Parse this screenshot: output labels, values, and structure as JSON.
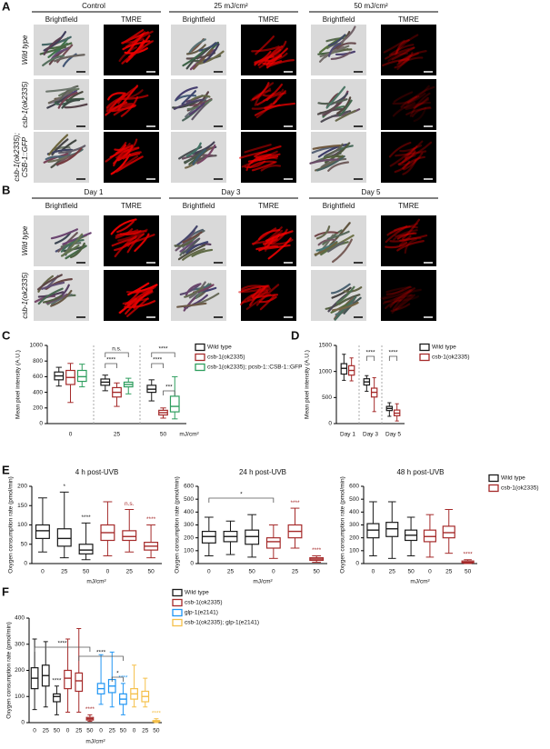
{
  "panel_a": {
    "label": "A",
    "columns": [
      "Control",
      "25 mJ/cm²",
      "50 mJ/cm²"
    ],
    "subcolumns": [
      "Brightfield",
      "TMRE"
    ],
    "rows": [
      [
        "Wild type"
      ],
      [
        "csb-1(ok2335)"
      ],
      [
        "csb-1(ok2335);",
        "CSB-1::GFP"
      ]
    ]
  },
  "panel_b": {
    "label": "B",
    "columns": [
      "Day 1",
      "Day 3",
      "Day 5"
    ],
    "subcolumns": [
      "Brightfield",
      "TMRE"
    ],
    "rows": [
      [
        "Wild type"
      ],
      [
        "csb-1(ok2335)"
      ]
    ]
  },
  "chart_data": [
    {
      "type": "box",
      "label": "C",
      "y_label": "Mean pixel intensity (A.U.)",
      "x_label": "mJ/cm²",
      "categories": [
        "0",
        "25",
        "50"
      ],
      "ylim": [
        0,
        1000
      ],
      "yticks": [
        0,
        200,
        400,
        600,
        800,
        1000
      ],
      "brackets": [
        "n.s.",
        "****",
        "****",
        "****",
        "***"
      ],
      "series": [
        {
          "name": "Wild type",
          "color": "#1a1a1a",
          "values": [
            {
              "min": 480,
              "q1": 560,
              "median": 610,
              "q3": 660,
              "max": 720
            },
            {
              "min": 420,
              "q1": 490,
              "median": 530,
              "q3": 570,
              "max": 620
            },
            {
              "min": 290,
              "q1": 400,
              "median": 440,
              "q3": 490,
              "max": 560
            }
          ]
        },
        {
          "name": "csb-1(ok2335)",
          "color": "#a52a2a",
          "values": [
            {
              "min": 270,
              "q1": 500,
              "median": 590,
              "q3": 680,
              "max": 770
            },
            {
              "min": 220,
              "q1": 340,
              "median": 400,
              "q3": 460,
              "max": 520
            },
            {
              "min": 70,
              "q1": 110,
              "median": 140,
              "q3": 170,
              "max": 200
            }
          ]
        },
        {
          "name": "csb-1(ok2335); pcsb-1::CSB-1::GFP",
          "color": "#2e9e5e",
          "values": [
            {
              "min": 470,
              "q1": 540,
              "median": 600,
              "q3": 680,
              "max": 760
            },
            {
              "min": 380,
              "q1": 470,
              "median": 500,
              "q3": 530,
              "max": 580
            },
            {
              "min": 60,
              "q1": 150,
              "median": 220,
              "q3": 350,
              "max": 600
            }
          ]
        }
      ]
    },
    {
      "type": "box",
      "label": "D",
      "y_label": "Mean pixel intensity (A.U.)",
      "categories": [
        "Day 1",
        "Day 3",
        "Day 5"
      ],
      "ylim": [
        0,
        1500
      ],
      "yticks": [
        0,
        500,
        1000,
        1500
      ],
      "brackets": [
        "****",
        "****"
      ],
      "series": [
        {
          "name": "Wild type",
          "color": "#1a1a1a",
          "values": [
            {
              "min": 830,
              "q1": 950,
              "median": 1060,
              "q3": 1150,
              "max": 1330
            },
            {
              "min": 620,
              "q1": 740,
              "median": 800,
              "q3": 860,
              "max": 920
            },
            {
              "min": 140,
              "q1": 250,
              "median": 290,
              "q3": 330,
              "max": 400
            }
          ]
        },
        {
          "name": "csb-1(ok2335)",
          "color": "#a52a2a",
          "values": [
            {
              "min": 820,
              "q1": 930,
              "median": 1020,
              "q3": 1110,
              "max": 1260
            },
            {
              "min": 230,
              "q1": 510,
              "median": 600,
              "q3": 680,
              "max": 880
            },
            {
              "min": 50,
              "q1": 150,
              "median": 200,
              "q3": 260,
              "max": 380
            }
          ]
        }
      ]
    },
    {
      "type": "box",
      "label": "E",
      "title": "4 h post-UVB",
      "y_label": "Oxygen consumption rate (pmol/min)",
      "x_label": "mJ/cm²",
      "categories": [
        "0",
        "25",
        "50"
      ],
      "ylim": [
        0,
        200
      ],
      "yticks": [
        0,
        50,
        100,
        150,
        200
      ],
      "series": [
        {
          "name": "Wild type",
          "color": "#1a1a1a",
          "sig": [
            null,
            "*",
            "****"
          ],
          "values": [
            {
              "min": 30,
              "q1": 65,
              "median": 85,
              "q3": 100,
              "max": 170
            },
            {
              "min": 15,
              "q1": 45,
              "median": 65,
              "q3": 90,
              "max": 185
            },
            {
              "min": 10,
              "q1": 25,
              "median": 35,
              "q3": 50,
              "max": 105
            }
          ]
        },
        {
          "name": "csb-1(ok2335)",
          "color": "#a52a2a",
          "sig": [
            null,
            "n.s.",
            "****"
          ],
          "values": [
            {
              "min": 20,
              "q1": 60,
              "median": 80,
              "q3": 100,
              "max": 160
            },
            {
              "min": 30,
              "q1": 60,
              "median": 70,
              "q3": 85,
              "max": 140
            },
            {
              "min": 15,
              "q1": 35,
              "median": 45,
              "q3": 55,
              "max": 100
            }
          ]
        }
      ]
    },
    {
      "type": "box",
      "title": "24 h post-UVB",
      "y_label": "Oxygen consumption rate (pmol/min)",
      "x_label": "mJ/cm²",
      "categories": [
        "0",
        "25",
        "50"
      ],
      "ylim": [
        0,
        600
      ],
      "yticks": [
        0,
        100,
        200,
        300,
        400,
        500,
        600
      ],
      "brackets": [
        "*"
      ],
      "series": [
        {
          "name": "Wild type",
          "color": "#1a1a1a",
          "values": [
            {
              "min": 60,
              "q1": 160,
              "median": 210,
              "q3": 250,
              "max": 360
            },
            {
              "min": 70,
              "q1": 170,
              "median": 210,
              "q3": 250,
              "max": 330
            },
            {
              "min": 50,
              "q1": 150,
              "median": 210,
              "q3": 260,
              "max": 380
            }
          ]
        },
        {
          "name": "csb-1(ok2335)",
          "color": "#a52a2a",
          "sig": [
            null,
            "****",
            "****"
          ],
          "values": [
            {
              "min": 40,
              "q1": 120,
              "median": 170,
              "q3": 200,
              "max": 300
            },
            {
              "min": 120,
              "q1": 200,
              "median": 250,
              "q3": 300,
              "max": 430
            },
            {
              "min": 10,
              "q1": 25,
              "median": 35,
              "q3": 45,
              "max": 60
            }
          ]
        }
      ]
    },
    {
      "type": "box",
      "title": "48 h post-UVB",
      "y_label": "Oxygen consumption rate (pmol/min)",
      "x_label": "mJ/cm²",
      "categories": [
        "0",
        "25",
        "50"
      ],
      "ylim": [
        0,
        600
      ],
      "yticks": [
        0,
        100,
        200,
        300,
        400,
        500,
        600
      ],
      "series": [
        {
          "name": "Wild type",
          "color": "#1a1a1a",
          "values": [
            {
              "min": 60,
              "q1": 200,
              "median": 260,
              "q3": 310,
              "max": 480
            },
            {
              "min": 40,
              "q1": 210,
              "median": 270,
              "q3": 320,
              "max": 480
            },
            {
              "min": 60,
              "q1": 180,
              "median": 220,
              "q3": 260,
              "max": 360
            }
          ]
        },
        {
          "name": "csb-1(ok2335)",
          "color": "#a52a2a",
          "sig": [
            null,
            null,
            "****"
          ],
          "values": [
            {
              "min": 50,
              "q1": 170,
              "median": 210,
              "q3": 260,
              "max": 380
            },
            {
              "min": 80,
              "q1": 200,
              "median": 240,
              "q3": 290,
              "max": 420
            },
            {
              "min": 0,
              "q1": 5,
              "median": 10,
              "q3": 20,
              "max": 30
            }
          ]
        }
      ]
    },
    {
      "type": "box",
      "label": "F",
      "y_label": "Oxygen consumption rate (pmol/min)",
      "x_label": "mJ/cm²",
      "categories": [
        "0",
        "25",
        "50"
      ],
      "ylim": [
        0,
        400
      ],
      "yticks": [
        0,
        100,
        200,
        300,
        400
      ],
      "brackets": [
        "****",
        "****",
        "*"
      ],
      "series": [
        {
          "name": "Wild type",
          "color": "#1a1a1a",
          "sig": [
            null,
            null,
            "****"
          ],
          "values": [
            {
              "min": 50,
              "q1": 130,
              "median": 170,
              "q3": 210,
              "max": 320
            },
            {
              "min": 60,
              "q1": 140,
              "median": 180,
              "q3": 220,
              "max": 310
            },
            {
              "min": 30,
              "q1": 80,
              "median": 100,
              "q3": 110,
              "max": 140
            }
          ]
        },
        {
          "name": "csb-1(ok2335)",
          "color": "#a52a2a",
          "sig": [
            null,
            null,
            "****"
          ],
          "values": [
            {
              "min": 40,
              "q1": 130,
              "median": 170,
              "q3": 200,
              "max": 320
            },
            {
              "min": 40,
              "q1": 120,
              "median": 160,
              "q3": 190,
              "max": 360
            },
            {
              "min": 5,
              "q1": 10,
              "median": 15,
              "q3": 20,
              "max": 30
            }
          ]
        },
        {
          "name": "glp-1(e2141)",
          "color": "#2196f3",
          "sig": [
            null,
            null,
            "****"
          ],
          "values": [
            {
              "min": 70,
              "q1": 110,
              "median": 130,
              "q3": 150,
              "max": 260
            },
            {
              "min": 60,
              "q1": 115,
              "median": 140,
              "q3": 165,
              "max": 270
            },
            {
              "min": 30,
              "q1": 70,
              "median": 90,
              "q3": 110,
              "max": 150
            }
          ]
        },
        {
          "name": "csb-1(ok2335); glp-1(e2141)",
          "color": "#f5c04a",
          "sig": [
            null,
            null,
            "****"
          ],
          "values": [
            {
              "min": 60,
              "q1": 90,
              "median": 110,
              "q3": 130,
              "max": 220
            },
            {
              "min": 60,
              "q1": 80,
              "median": 100,
              "q3": 120,
              "max": 170
            },
            {
              "min": 0,
              "q1": 3,
              "median": 5,
              "q3": 8,
              "max": 15
            }
          ]
        }
      ]
    }
  ]
}
